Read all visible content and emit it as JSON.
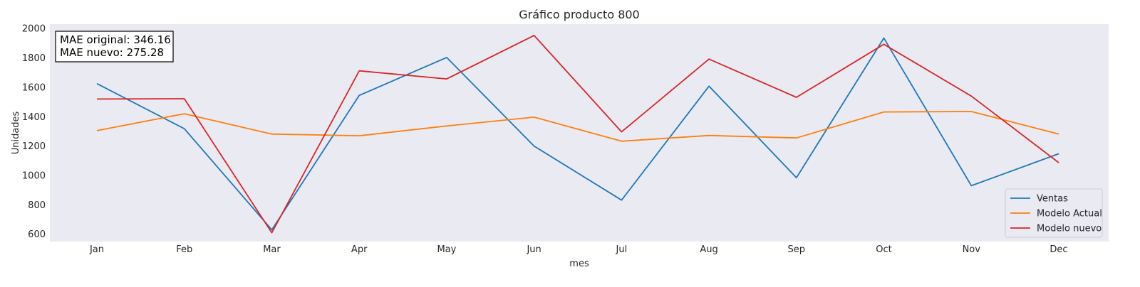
{
  "chart_data": {
    "type": "line",
    "title": "Gráfico producto 800",
    "xlabel": "mes",
    "ylabel": "Unidades",
    "categories": [
      "Jan",
      "Feb",
      "Mar",
      "Apr",
      "May",
      "Jun",
      "Jul",
      "Aug",
      "Sep",
      "Oct",
      "Nov",
      "Dec"
    ],
    "ylim": [
      550,
      2030
    ],
    "yticks": [
      600,
      800,
      1000,
      1200,
      1400,
      1600,
      1800,
      2000
    ],
    "grid": false,
    "legend_position": "bottom-right",
    "background": "#eaeaf2",
    "series": [
      {
        "name": "Ventas",
        "color": "#1f77b4",
        "values": [
          1625,
          1318,
          630,
          1545,
          1803,
          1200,
          832,
          1608,
          985,
          1935,
          930,
          1148
        ]
      },
      {
        "name": "Modelo Actual",
        "color": "#ff7f0e",
        "values": [
          1305,
          1420,
          1282,
          1270,
          1337,
          1397,
          1233,
          1272,
          1255,
          1432,
          1435,
          1282
        ]
      },
      {
        "name": "Modelo nuevo",
        "color": "#d62728",
        "values": [
          1520,
          1522,
          610,
          1712,
          1657,
          1953,
          1297,
          1792,
          1532,
          1893,
          1540,
          1087
        ]
      }
    ],
    "annotation": {
      "line1": "MAE original: 346.16",
      "line2": "MAE nuevo: 275.28"
    }
  }
}
